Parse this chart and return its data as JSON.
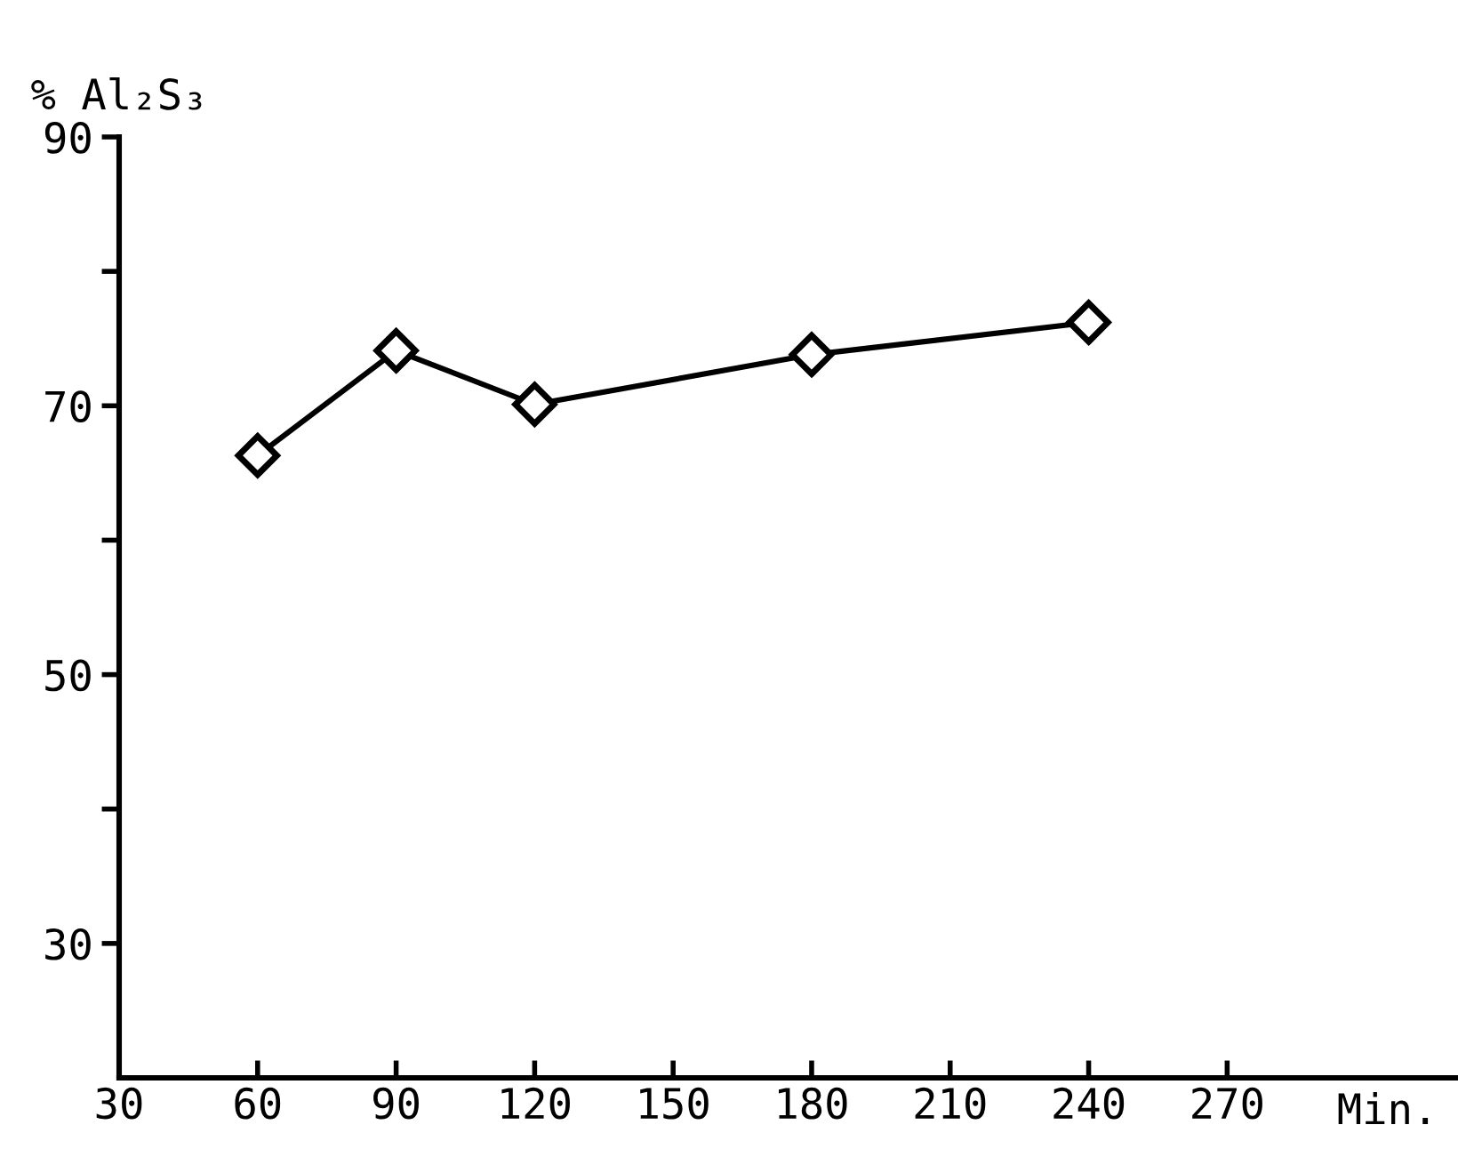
{
  "chart_data": {
    "type": "line",
    "ylabel": "% Al₂S₃",
    "xlabel": "Min.",
    "x": [
      60,
      90,
      120,
      180,
      240
    ],
    "series": [
      {
        "color": "#000000",
        "values": [
          66.3,
          74.1,
          70.1,
          73.8,
          76.2
        ]
      }
    ],
    "marker": "diamond",
    "line_style": "solid",
    "grid": false,
    "legend": false,
    "xlim": [
      30,
      320
    ],
    "xticks": [
      30,
      60,
      90,
      120,
      150,
      180,
      210,
      240,
      270
    ],
    "ylim": [
      20,
      90
    ],
    "yticks": [
      30,
      {
        "value": 40,
        "label": null
      },
      50,
      {
        "value": 60,
        "label": null
      },
      70,
      {
        "value": 80,
        "label": null
      },
      90
    ]
  }
}
